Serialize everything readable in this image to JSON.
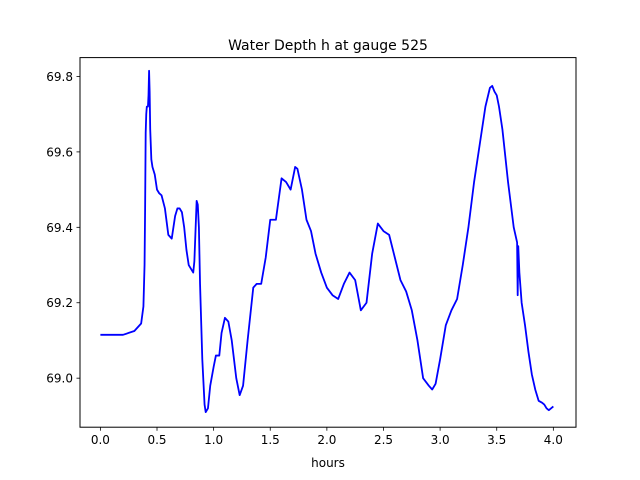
{
  "chart_data": {
    "type": "line",
    "title": "Water Depth h at gauge 525",
    "xlabel": "hours",
    "ylabel": "",
    "xlim": [
      -0.18,
      4.2
    ],
    "ylim": [
      68.87,
      69.85
    ],
    "xticks": [
      0.0,
      0.5,
      1.0,
      1.5,
      2.0,
      2.5,
      3.0,
      3.5,
      4.0
    ],
    "xtick_labels": [
      "0.0",
      "0.5",
      "1.0",
      "1.5",
      "2.0",
      "2.5",
      "3.0",
      "3.5",
      "4.0"
    ],
    "yticks": [
      69.0,
      69.2,
      69.4,
      69.6,
      69.8
    ],
    "ytick_labels": [
      "69.0",
      "69.2",
      "69.4",
      "69.6",
      "69.8"
    ],
    "grid": false,
    "line_color": "#0000ff",
    "series": [
      {
        "x": [
          0.0,
          0.2,
          0.3,
          0.36,
          0.38,
          0.39,
          0.395,
          0.4,
          0.405,
          0.41,
          0.42,
          0.425,
          0.43,
          0.435,
          0.44,
          0.45,
          0.46,
          0.48,
          0.5,
          0.52,
          0.54,
          0.57,
          0.6,
          0.63,
          0.66,
          0.68,
          0.7,
          0.72,
          0.74,
          0.76,
          0.78,
          0.8,
          0.82,
          0.83,
          0.85,
          0.86,
          0.87,
          0.88,
          0.9,
          0.92,
          0.93,
          0.95,
          0.97,
          1.0,
          1.02,
          1.05,
          1.07,
          1.1,
          1.13,
          1.16,
          1.2,
          1.23,
          1.26,
          1.3,
          1.35,
          1.38,
          1.42,
          1.46,
          1.5,
          1.55,
          1.6,
          1.64,
          1.68,
          1.72,
          1.74,
          1.78,
          1.82,
          1.86,
          1.9,
          1.95,
          2.0,
          2.05,
          2.1,
          2.15,
          2.2,
          2.25,
          2.3,
          2.35,
          2.4,
          2.45,
          2.5,
          2.55,
          2.6,
          2.65,
          2.7,
          2.75,
          2.8,
          2.85,
          2.9,
          2.93,
          2.96,
          3.0,
          3.05,
          3.1,
          3.15,
          3.2,
          3.25,
          3.3,
          3.35,
          3.4,
          3.44,
          3.46,
          3.48,
          3.5,
          3.52,
          3.55,
          3.6,
          3.65,
          3.68,
          3.685,
          3.69,
          3.7,
          3.72,
          3.75,
          3.78,
          3.81,
          3.84,
          3.87,
          3.9,
          3.92,
          3.94,
          3.96,
          3.98,
          4.0
        ],
        "y": [
          69.115,
          69.115,
          69.125,
          69.145,
          69.19,
          69.3,
          69.45,
          69.65,
          69.7,
          69.72,
          69.72,
          69.75,
          69.815,
          69.76,
          69.66,
          69.58,
          69.56,
          69.54,
          69.5,
          69.49,
          69.485,
          69.45,
          69.38,
          69.37,
          69.43,
          69.45,
          69.45,
          69.44,
          69.4,
          69.34,
          69.3,
          69.29,
          69.28,
          69.31,
          69.47,
          69.46,
          69.4,
          69.25,
          69.05,
          68.93,
          68.91,
          68.92,
          68.98,
          69.03,
          69.06,
          69.06,
          69.12,
          69.16,
          69.15,
          69.1,
          69.0,
          68.955,
          68.98,
          69.1,
          69.24,
          69.25,
          69.25,
          69.32,
          69.42,
          69.42,
          69.53,
          69.52,
          69.5,
          69.56,
          69.555,
          69.5,
          69.42,
          69.39,
          69.33,
          69.28,
          69.24,
          69.22,
          69.21,
          69.25,
          69.28,
          69.26,
          69.18,
          69.2,
          69.33,
          69.41,
          69.39,
          69.38,
          69.32,
          69.26,
          69.23,
          69.18,
          69.1,
          69.0,
          68.98,
          68.97,
          68.985,
          69.05,
          69.14,
          69.18,
          69.21,
          69.3,
          69.4,
          69.52,
          69.62,
          69.72,
          69.77,
          69.775,
          69.76,
          69.75,
          69.72,
          69.66,
          69.52,
          69.4,
          69.36,
          69.22,
          69.35,
          69.28,
          69.2,
          69.14,
          69.07,
          69.01,
          68.97,
          68.94,
          68.935,
          68.93,
          68.92,
          68.915,
          68.92,
          68.925
        ]
      }
    ]
  }
}
